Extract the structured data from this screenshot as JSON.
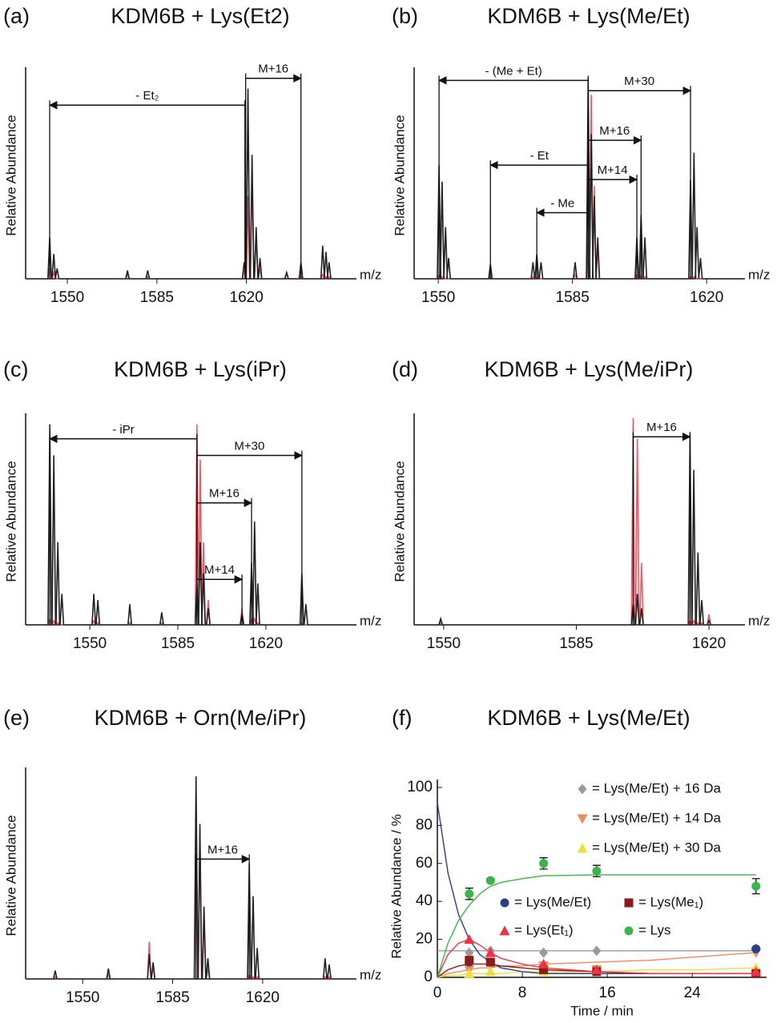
{
  "chart_data": [
    {
      "type": "spectrum",
      "label": "(a)",
      "title": "KDM6B + Lys(Et2)",
      "ylabel": "Relative Abundance",
      "xlabel": "m/z",
      "xlim": [
        1533.7,
        1663.0
      ],
      "xticks": [
        1550,
        1585,
        1620
      ],
      "ylim": [
        0,
        100
      ],
      "x": [
        1543.1,
        1544.7,
        1546.0,
        1573.5,
        1581.4,
        1619.1,
        1620.6,
        1622.2,
        1623.8,
        1625.3,
        1635.7,
        1641.3,
        1649.8,
        1651.1,
        1652.3
      ],
      "series": [
        {
          "color": "#222222",
          "values": [
            20,
            12,
            5,
            4,
            4,
            8,
            92,
            60,
            25,
            10,
            3,
            8,
            16,
            13,
            8
          ]
        },
        {
          "color": "#ef5a66",
          "values": [
            5,
            3,
            0,
            2,
            1,
            4,
            40,
            50,
            20,
            5,
            3,
            1,
            2,
            1,
            1
          ]
        }
      ],
      "annotations": [
        {
          "text": "- Et₂",
          "x": [
            1619.4,
            1543.1
          ],
          "y": 84
        },
        {
          "text": "M+16",
          "x": [
            1619.7,
            1641.3
          ],
          "y": 97
        }
      ]
    },
    {
      "type": "spectrum",
      "label": "(b)",
      "title": "KDM6B + Lys(Me/Et)",
      "ylabel": "Relative Abundance",
      "xlabel": "m/z",
      "xlim": [
        1543.7,
        1630.0
      ],
      "xticks": [
        1550,
        1585,
        1620
      ],
      "ylim": [
        0,
        100
      ],
      "x": [
        1550.2,
        1551.0,
        1551.9,
        1552.7,
        1563.6,
        1574.7,
        1575.7,
        1576.8,
        1585.7,
        1589.1,
        1589.9,
        1590.7,
        1591.6,
        1601.8,
        1602.9,
        1603.9,
        1615.8,
        1616.7,
        1617.5,
        1618.4
      ],
      "series": [
        {
          "color": "#222222",
          "values": [
            55,
            47,
            25,
            10,
            7,
            8,
            12,
            8,
            8,
            97,
            70,
            40,
            20,
            20,
            31,
            20,
            48,
            61,
            25,
            10
          ]
        },
        {
          "color": "#ef5a66",
          "values": [
            2,
            1,
            0,
            0,
            1,
            1,
            1,
            0,
            2,
            20,
            89,
            45,
            15,
            2,
            2,
            1,
            1,
            1,
            0,
            0
          ]
        }
      ],
      "annotations": [
        {
          "text": "- (Me + Et)",
          "x": [
            1589.1,
            1550.2
          ],
          "y": 96
        },
        {
          "text": "M+30",
          "x": [
            1589.1,
            1615.8
          ],
          "y": 91
        },
        {
          "text": "M+16",
          "x": [
            1589.1,
            1602.9
          ],
          "y": 67
        },
        {
          "text": "- Et",
          "x": [
            1589.1,
            1563.6
          ],
          "y": 55
        },
        {
          "text": "M+14",
          "x": [
            1589.1,
            1601.8
          ],
          "y": 48
        },
        {
          "text": "- Me",
          "x": [
            1589.1,
            1575.7
          ],
          "y": 32
        }
      ]
    },
    {
      "type": "spectrum",
      "label": "(c)",
      "title": "KDM6B + Lys(iPr)",
      "ylabel": "Relative Abundance",
      "xlabel": "m/z",
      "xlim": [
        1524.5,
        1656.0
      ],
      "xticks": [
        1550,
        1585,
        1620
      ],
      "ylim": [
        0,
        100
      ],
      "x": [
        1534.1,
        1535.7,
        1537.3,
        1538.9,
        1551.6,
        1553.2,
        1565.9,
        1578.6,
        1592.6,
        1593.9,
        1595.2,
        1597.1,
        1610.5,
        1614.3,
        1615.5,
        1616.8,
        1634.3,
        1635.9
      ],
      "series": [
        {
          "color": "#222222",
          "values": [
            97,
            82,
            40,
            15,
            15,
            12,
            10,
            6,
            20,
            40,
            25,
            8,
            5,
            30,
            50,
            20,
            25,
            10
          ]
        },
        {
          "color": "#ef5a66",
          "values": [
            3,
            2,
            1,
            0,
            2,
            1,
            1,
            1,
            97,
            80,
            40,
            12,
            8,
            3,
            3,
            1,
            1,
            0
          ]
        }
      ],
      "annotations": [
        {
          "text": "- iPr",
          "x": [
            1592.6,
            1534.1
          ],
          "y": 90
        },
        {
          "text": "M+30",
          "x": [
            1592.6,
            1634.3
          ],
          "y": 82
        },
        {
          "text": "M+16",
          "x": [
            1592.6,
            1614.3
          ],
          "y": 59
        },
        {
          "text": "M+14",
          "x": [
            1592.6,
            1610.5
          ],
          "y": 22
        }
      ]
    },
    {
      "type": "spectrum",
      "label": "(d)",
      "title": "KDM6B + Lys(Me/iPr)",
      "ylabel": "Relative Abundance",
      "xlabel": "m/z",
      "xlim": [
        1542.2,
        1629.5
      ],
      "xticks": [
        1550,
        1585,
        1620
      ],
      "ylim": [
        0,
        100
      ],
      "x": [
        1549.2,
        1600.0,
        1601.1,
        1602.2,
        1615.0,
        1616.0,
        1617.1,
        1618.1,
        1620.0
      ],
      "series": [
        {
          "color": "#222222",
          "values": [
            3,
            10,
            15,
            8,
            92,
            75,
            35,
            12,
            2
          ]
        },
        {
          "color": "#ef5a66",
          "values": [
            1,
            100,
            90,
            30,
            2,
            2,
            1,
            1,
            5
          ]
        }
      ],
      "annotations": [
        {
          "text": "M+16",
          "x": [
            1600.0,
            1615.0
          ],
          "y": 91
        }
      ]
    },
    {
      "type": "spectrum",
      "label": "(e)",
      "title": "KDM6B + Orn(Me/iPr)",
      "ylabel": "Relative Abundance",
      "xlabel": "m/z",
      "xlim": [
        1527.8,
        1656.5
      ],
      "xticks": [
        1550,
        1585,
        1620
      ],
      "ylim": [
        0,
        100
      ],
      "x": [
        1539.3,
        1560.0,
        1575.9,
        1577.4,
        1594.1,
        1595.6,
        1597.2,
        1598.7,
        1614.8,
        1616.3,
        1617.9,
        1644.3,
        1645.9
      ],
      "series": [
        {
          "color": "#222222",
          "values": [
            4,
            5,
            12,
            8,
            98,
            75,
            35,
            10,
            56,
            40,
            15,
            10,
            7
          ]
        },
        {
          "color": "#ef5a66",
          "values": [
            1,
            2,
            18,
            6,
            88,
            70,
            30,
            5,
            2,
            1,
            1,
            1,
            1
          ]
        }
      ],
      "annotations": [
        {
          "text": "M+16",
          "x": [
            1594.1,
            1614.8
          ],
          "y": 58
        }
      ]
    },
    {
      "type": "scatter",
      "label": "(f)",
      "title": "KDM6B + Lys(Me/Et)",
      "ylabel": "Relative Abundance / %",
      "xlabel": "Time / min",
      "xlim": [
        0,
        31
      ],
      "xticks": [
        0,
        8,
        16,
        24
      ],
      "ylim": [
        0,
        100
      ],
      "yticks": [
        0,
        20,
        40,
        60,
        80,
        100
      ],
      "x": [
        3,
        5,
        10,
        15,
        30
      ],
      "fit_x": [
        0,
        1,
        2,
        3,
        4,
        5,
        6,
        8,
        10,
        15,
        20,
        25,
        30
      ],
      "series": [
        {
          "name": "= Lys(Me/Et) + 16 Da",
          "color": "#9a9a9a",
          "marker": "diamond",
          "values": [
            13,
            14,
            13,
            14,
            15
          ],
          "fit": [
            14,
            14,
            14,
            14,
            14,
            14,
            14,
            14,
            14,
            14,
            14,
            14,
            14
          ]
        },
        {
          "name": "= Lys(Me/Et) + 14 Da",
          "color": "#f08a5d",
          "marker": "triangle-down",
          "values": [
            4,
            7,
            6,
            4,
            13
          ],
          "fit": [
            0,
            2,
            3,
            4,
            5,
            5,
            6,
            6,
            7,
            8,
            9,
            11,
            13
          ]
        },
        {
          "name": "= Lys(Me/Et) + 30 Da",
          "color": "#eee03a",
          "marker": "triangle",
          "values": [
            2,
            3,
            3,
            4,
            5
          ],
          "fit": [
            0,
            1,
            1,
            2,
            2,
            2,
            2,
            3,
            3,
            3,
            4,
            4,
            5
          ]
        },
        {
          "name": "= Lys(Me/Et)",
          "color": "#2c3f86",
          "marker": "circle",
          "values": [
            8,
            8,
            4,
            3,
            15
          ],
          "fit": [
            92,
            55,
            33,
            20,
            12,
            8,
            5,
            3,
            2,
            2,
            2,
            2,
            2
          ]
        },
        {
          "name": "= Lys(Me₁)",
          "color": "#8b1a1a",
          "marker": "square",
          "values": [
            9,
            8,
            4,
            3,
            2
          ],
          "fit": [
            0,
            4,
            6,
            7,
            7,
            7,
            6,
            5,
            4,
            3,
            2,
            2,
            2
          ]
        },
        {
          "name": "= Lys(Et₁)",
          "color": "#ee3344",
          "marker": "triangle",
          "values": [
            20,
            13,
            7,
            4,
            3
          ],
          "fit": [
            0,
            12,
            18,
            20,
            17,
            13,
            10,
            7,
            5,
            3,
            2,
            2,
            2
          ]
        },
        {
          "name": "= Lys",
          "color": "#3cb44b",
          "marker": "circle",
          "values": [
            44,
            51,
            60,
            56,
            48
          ],
          "errors": [
            3,
            1,
            3,
            3,
            4
          ],
          "fit": [
            0,
            18,
            30,
            38,
            44,
            48,
            50,
            52,
            53.5,
            54,
            54,
            54,
            54
          ]
        }
      ]
    }
  ]
}
